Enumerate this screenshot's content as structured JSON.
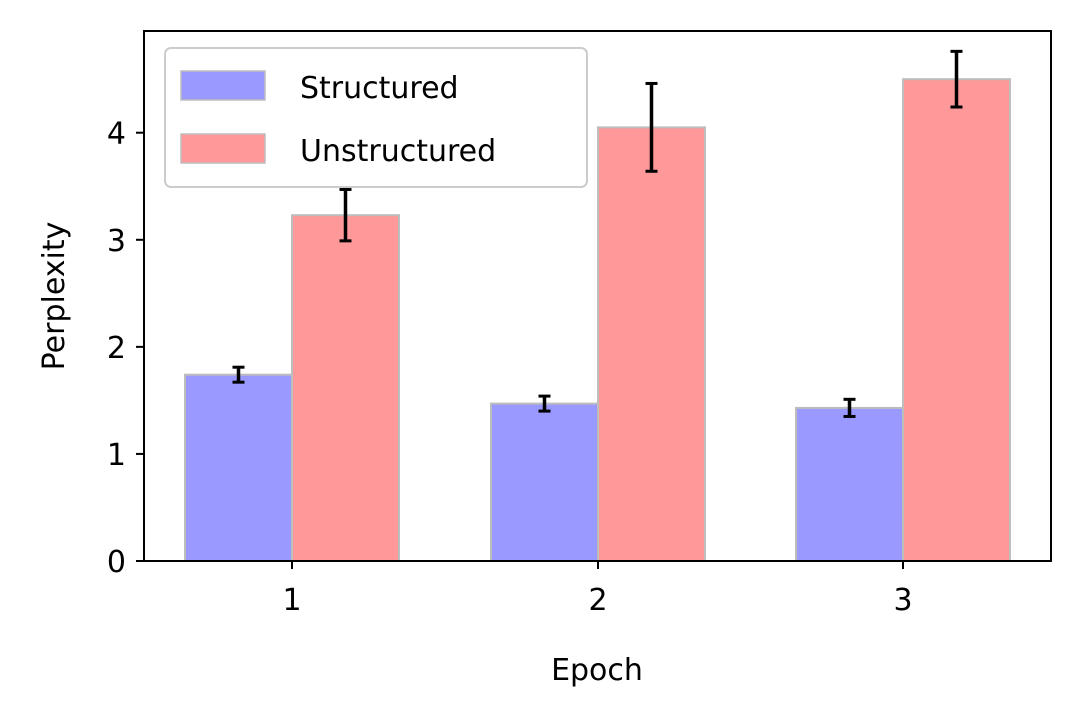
{
  "chart_data": {
    "type": "bar",
    "xlabel": "Epoch",
    "ylabel": "Perplexity",
    "categories": [
      "1",
      "2",
      "3"
    ],
    "ylim": [
      0,
      4.95
    ],
    "yticks": [
      0,
      1,
      2,
      3,
      4
    ],
    "grid": false,
    "legend_position": "top-left",
    "series": [
      {
        "name": "Structured",
        "color": "#9999ff",
        "values": [
          1.74,
          1.47,
          1.43
        ],
        "errors": [
          0.07,
          0.07,
          0.08
        ]
      },
      {
        "name": "Unstructured",
        "color": "#ff9999",
        "values": [
          3.23,
          4.05,
          4.5
        ],
        "errors": [
          0.24,
          0.41,
          0.26
        ]
      }
    ]
  }
}
